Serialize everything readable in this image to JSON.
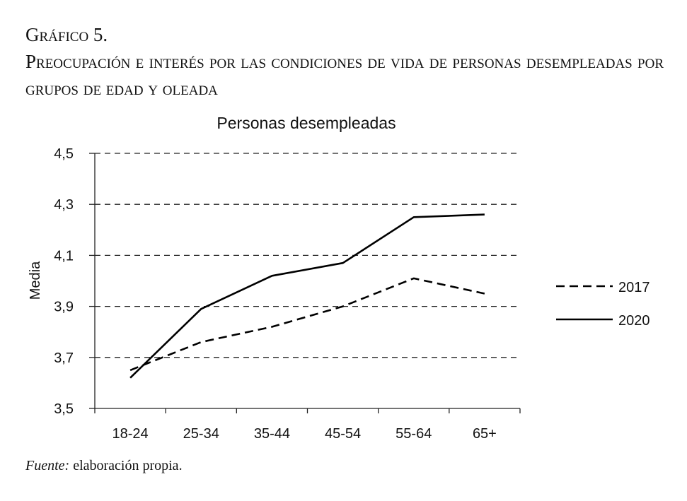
{
  "caption": {
    "figure_number": "Gráfico 5.",
    "figure_title": "Preocupación e interés por las condiciones de vida de personas desempleadas por grupos de edad y oleada"
  },
  "source": {
    "label": "Fuente:",
    "text": "elaboración propia."
  },
  "chart_data": {
    "type": "line",
    "title": "Personas desempleadas",
    "xlabel": "",
    "ylabel": "Media",
    "categories": [
      "18-24",
      "25-34",
      "35-44",
      "45-54",
      "55-64",
      "65+"
    ],
    "ylim": [
      3.5,
      4.5
    ],
    "yticks": [
      "3,5",
      "3,7",
      "3,9",
      "4,1",
      "4,3",
      "4,5"
    ],
    "grid": true,
    "legend_position": "right",
    "series": [
      {
        "name": "2017",
        "style": "dashed",
        "color": "#000000",
        "values": [
          3.65,
          3.76,
          3.82,
          3.9,
          4.01,
          3.95
        ]
      },
      {
        "name": "2020",
        "style": "solid",
        "color": "#000000",
        "values": [
          3.62,
          3.89,
          4.02,
          4.07,
          4.25,
          4.26
        ]
      }
    ]
  }
}
